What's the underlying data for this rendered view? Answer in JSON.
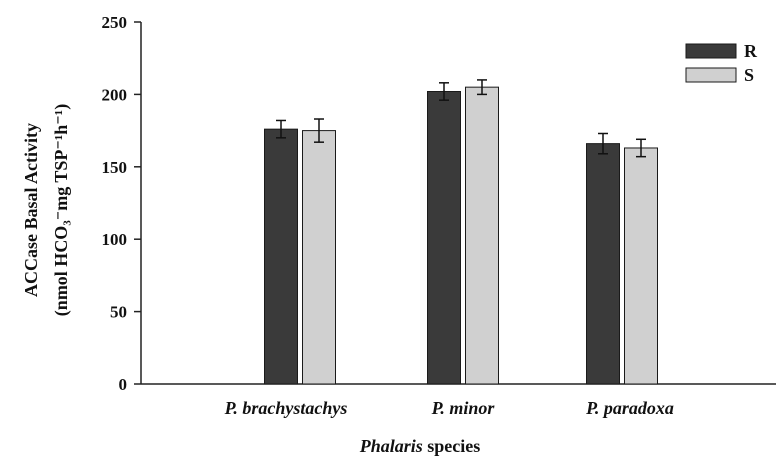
{
  "chart_data": {
    "type": "bar",
    "categories": [
      "P. brachystachys",
      "P. minor",
      "P. paradoxa"
    ],
    "series": [
      {
        "name": "R",
        "values": [
          176,
          202,
          166
        ],
        "errors": [
          6,
          6,
          7
        ],
        "color": "#3a3a3a"
      },
      {
        "name": "S",
        "values": [
          175,
          205,
          163
        ],
        "errors": [
          8,
          5,
          6
        ],
        "color": "#d0d0d0"
      }
    ],
    "xlabel_italic": "Phalaris",
    "xlabel_rest": " species",
    "ylabel_line1": "ACCase Basal Activity",
    "ylabel_line2": "(nmol HCO₃⁻mg TSP⁻¹h⁻¹)",
    "ylim": [
      0,
      250
    ],
    "yticks": [
      "0",
      "50",
      "100",
      "150",
      "200",
      "250"
    ],
    "grid": false,
    "legend_position": "top-right"
  }
}
